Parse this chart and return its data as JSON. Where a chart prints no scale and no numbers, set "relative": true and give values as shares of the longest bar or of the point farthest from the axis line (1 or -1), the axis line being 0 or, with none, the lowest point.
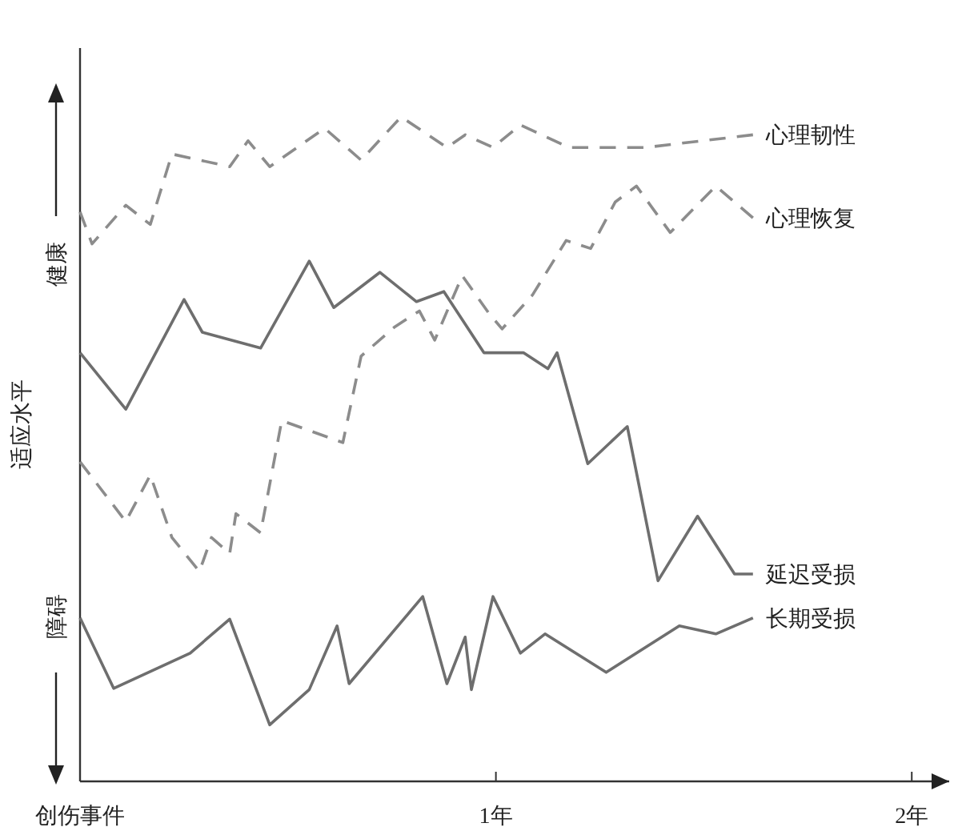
{
  "chart_data": {
    "type": "line",
    "relative": true,
    "ylabel": "适应水平",
    "xlim": [
      0,
      2.09
    ],
    "xticks": [
      {
        "value": 0,
        "label": "创伤事件"
      },
      {
        "value": 1,
        "label": "1年"
      },
      {
        "value": 2,
        "label": "2年"
      }
    ],
    "annotations": [
      "健康",
      "障碍"
    ],
    "grid": false,
    "series": [
      {
        "name": "心理韧性",
        "color": "#8c8c8c",
        "line_style": "dashed",
        "x": [
          0,
          0.029,
          0.11,
          0.169,
          0.221,
          0.36,
          0.404,
          0.456,
          0.588,
          0.676,
          0.772,
          0.882,
          0.926,
          0.993,
          1.059,
          1.176,
          1.36,
          1.618
        ],
        "values": [
          0.857,
          0.809,
          0.867,
          0.838,
          0.944,
          0.925,
          0.964,
          0.925,
          0.983,
          0.935,
          1,
          0.954,
          0.973,
          0.954,
          0.988,
          0.954,
          0.954,
          0.973
        ]
      },
      {
        "name": "心理恢复",
        "color": "#8c8c8c",
        "line_style": "dashed",
        "x": [
          0,
          0.11,
          0.169,
          0.221,
          0.287,
          0.316,
          0.36,
          0.375,
          0.434,
          0.485,
          0.632,
          0.676,
          0.757,
          0.816,
          0.853,
          0.919,
          0.985,
          1.015,
          1.088,
          1.169,
          1.228,
          1.287,
          1.338,
          1.419,
          1.529,
          1.618
        ],
        "values": [
          0.481,
          0.391,
          0.461,
          0.367,
          0.316,
          0.367,
          0.343,
          0.403,
          0.374,
          0.543,
          0.51,
          0.64,
          0.684,
          0.708,
          0.664,
          0.761,
          0.703,
          0.681,
          0.732,
          0.814,
          0.802,
          0.872,
          0.896,
          0.826,
          0.896,
          0.848
        ]
      },
      {
        "name": "延迟受损",
        "color": "#6e6e6e",
        "line_style": "solid",
        "x": [
          0,
          0.11,
          0.25,
          0.294,
          0.434,
          0.551,
          0.61,
          0.721,
          0.809,
          0.875,
          0.971,
          1.066,
          1.125,
          1.147,
          1.221,
          1.316,
          1.39,
          1.485,
          1.574,
          1.618
        ],
        "values": [
          0.645,
          0.56,
          0.725,
          0.676,
          0.652,
          0.783,
          0.713,
          0.766,
          0.722,
          0.737,
          0.645,
          0.645,
          0.621,
          0.645,
          0.478,
          0.534,
          0.302,
          0.399,
          0.312,
          0.312
        ]
      },
      {
        "name": "长期受损",
        "color": "#6e6e6e",
        "line_style": "solid",
        "x": [
          0,
          0.081,
          0.265,
          0.36,
          0.456,
          0.551,
          0.618,
          0.647,
          0.824,
          0.882,
          0.926,
          0.941,
          0.993,
          1.059,
          1.118,
          1.265,
          1.441,
          1.529,
          1.618
        ],
        "values": [
          0.246,
          0.14,
          0.193,
          0.244,
          0.085,
          0.138,
          0.234,
          0.147,
          0.278,
          0.147,
          0.217,
          0.138,
          0.278,
          0.193,
          0.222,
          0.164,
          0.234,
          0.222,
          0.246
        ]
      }
    ]
  }
}
